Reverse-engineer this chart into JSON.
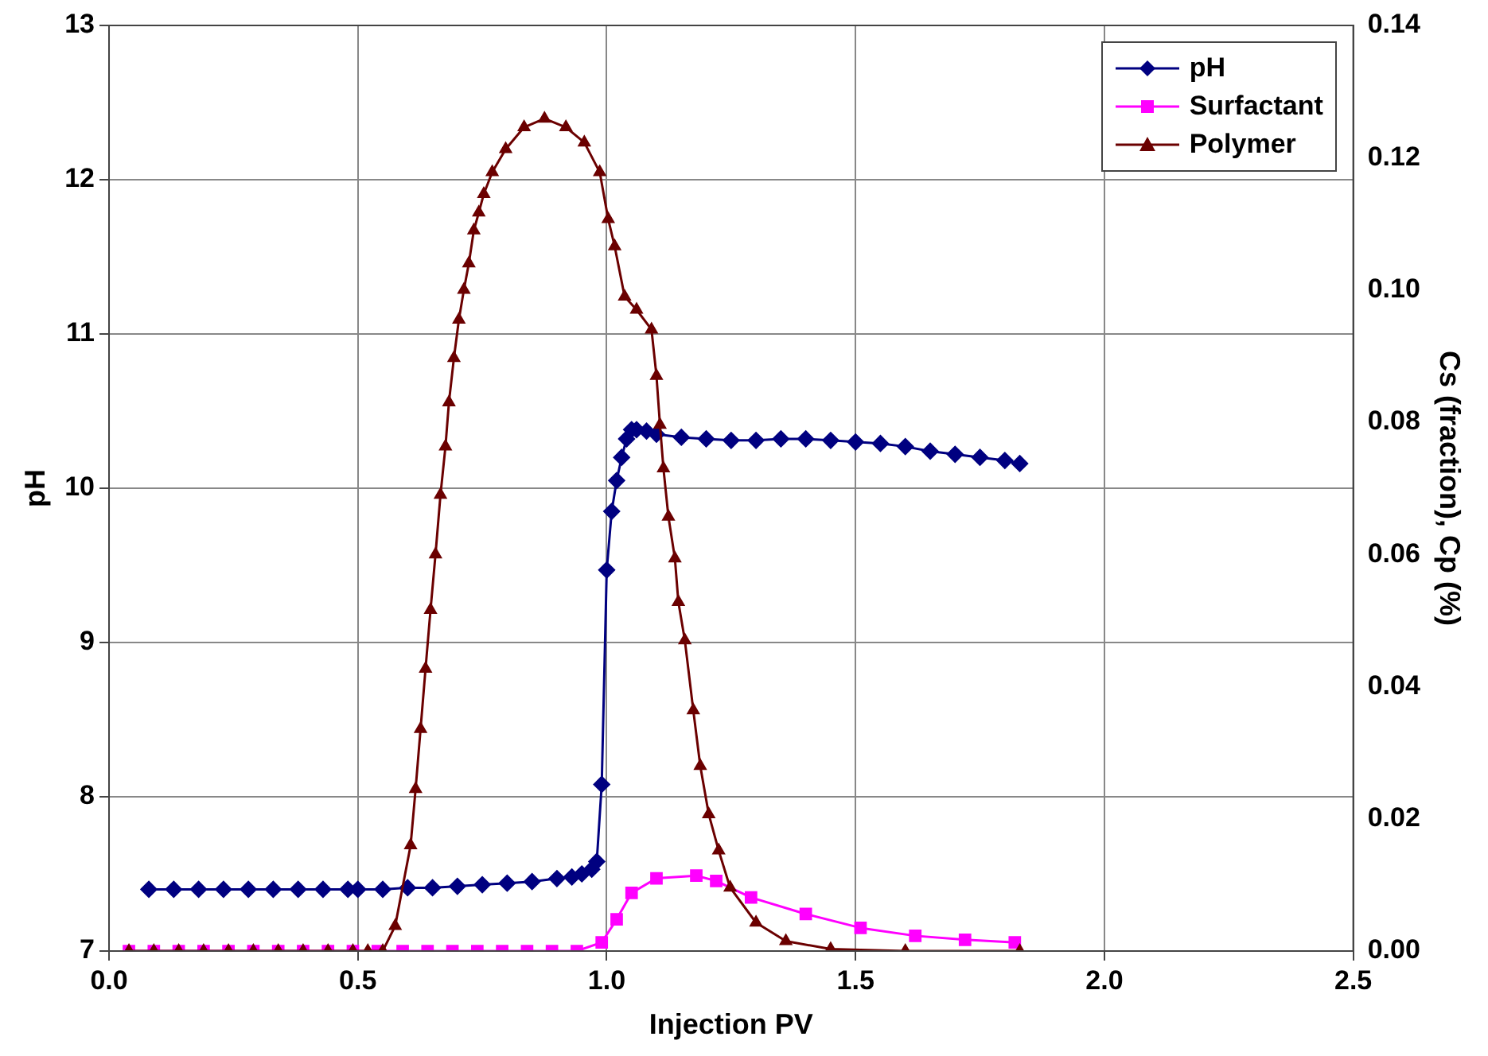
{
  "chart_data": {
    "type": "line",
    "xlabel": "Injection PV",
    "ylabel": "pH",
    "y2label": "Cs (fraction), Cp (%)",
    "xlim": [
      0,
      2.5
    ],
    "xticks": [
      {
        "value": 0,
        "label": "0.0"
      },
      {
        "value": 0.5,
        "label": "0.5"
      },
      {
        "value": 1,
        "label": "1.0"
      },
      {
        "value": 1.5,
        "label": "1.5"
      },
      {
        "value": 2,
        "label": "2.0"
      },
      {
        "value": 2.5,
        "label": "2.5"
      }
    ],
    "ylim": [
      7,
      13
    ],
    "yticks": [
      7,
      8,
      9,
      10,
      11,
      12,
      13
    ],
    "y2lim": [
      0,
      0.14
    ],
    "y2ticks": [
      {
        "value": 0,
        "label": "0.00"
      },
      {
        "value": 0.02,
        "label": "0.02"
      },
      {
        "value": 0.04,
        "label": "0.04"
      },
      {
        "value": 0.06,
        "label": "0.06"
      },
      {
        "value": 0.08,
        "label": "0.08"
      },
      {
        "value": 0.1,
        "label": "0.10"
      },
      {
        "value": 0.12,
        "label": "0.12"
      },
      {
        "value": 0.14,
        "label": "0.14"
      }
    ],
    "grid": true,
    "legend": "top right",
    "line_style": "solid",
    "series": [
      {
        "name": "pH",
        "color": "#000080",
        "marker": "diamond",
        "x": [
          0.08,
          0.13,
          0.18,
          0.23,
          0.28,
          0.33,
          0.38,
          0.43,
          0.48,
          0.5,
          0.55,
          0.6,
          0.65,
          0.7,
          0.75,
          0.8,
          0.85,
          0.9,
          0.93,
          0.95,
          0.97,
          0.98,
          0.99,
          1.0,
          1.01,
          1.02,
          1.03,
          1.04,
          1.05,
          1.06,
          1.08,
          1.1,
          1.15,
          1.2,
          1.25,
          1.3,
          1.35,
          1.4,
          1.45,
          1.5,
          1.55,
          1.6,
          1.65,
          1.7,
          1.75,
          1.8,
          1.83
        ],
        "values": [
          7.4,
          7.4,
          7.4,
          7.4,
          7.4,
          7.4,
          7.4,
          7.4,
          7.4,
          7.4,
          7.4,
          7.41,
          7.41,
          7.42,
          7.43,
          7.44,
          7.45,
          7.47,
          7.48,
          7.5,
          7.53,
          7.58,
          8.08,
          9.47,
          9.85,
          10.05,
          10.2,
          10.32,
          10.38,
          10.38,
          10.37,
          10.35,
          10.33,
          10.32,
          10.31,
          10.31,
          10.32,
          10.32,
          10.31,
          10.3,
          10.29,
          10.27,
          10.24,
          10.22,
          10.2,
          10.18,
          10.16
        ]
      },
      {
        "name": "Surfactant",
        "color": "#ff00ff",
        "marker": "square",
        "axis": "y2",
        "x": [
          0.04,
          0.09,
          0.14,
          0.19,
          0.24,
          0.29,
          0.34,
          0.39,
          0.44,
          0.49,
          0.54,
          0.59,
          0.64,
          0.69,
          0.74,
          0.79,
          0.84,
          0.89,
          0.94,
          0.99,
          1.02,
          1.05,
          1.1,
          1.18,
          1.22,
          1.29,
          1.4,
          1.51,
          1.62,
          1.72,
          1.82
        ],
        "values": [
          0,
          0,
          0,
          0,
          0,
          0,
          0,
          0,
          0,
          0,
          0,
          0,
          0,
          0,
          0,
          0,
          0,
          0,
          0,
          0.0013,
          0.0048,
          0.0088,
          0.011,
          0.0114,
          0.0106,
          0.0081,
          0.0056,
          0.0035,
          0.0023,
          0.0017,
          0.0013
        ]
      },
      {
        "name": "Polymer",
        "color": "#6b0000",
        "marker": "triangle",
        "axis": "y2",
        "x": [
          0.04,
          0.09,
          0.14,
          0.19,
          0.24,
          0.29,
          0.34,
          0.39,
          0.44,
          0.49,
          0.52,
          0.55,
          0.575,
          0.606,
          0.616,
          0.626,
          0.636,
          0.646,
          0.656,
          0.666,
          0.676,
          0.683,
          0.693,
          0.703,
          0.713,
          0.723,
          0.733,
          0.743,
          0.753,
          0.77,
          0.797,
          0.834,
          0.875,
          0.918,
          0.955,
          0.986,
          1.003,
          1.016,
          1.036,
          1.06,
          1.09,
          1.1,
          1.107,
          1.114,
          1.124,
          1.137,
          1.144,
          1.157,
          1.174,
          1.188,
          1.205,
          1.225,
          1.248,
          1.3,
          1.36,
          1.45,
          1.6,
          1.83
        ],
        "values": [
          0,
          0,
          0,
          0,
          0,
          0,
          0,
          0,
          0,
          0,
          0,
          0,
          0.0038,
          0.016,
          0.0245,
          0.0336,
          0.0427,
          0.0516,
          0.06,
          0.069,
          0.0763,
          0.083,
          0.0897,
          0.0955,
          0.1,
          0.104,
          0.109,
          0.1117,
          0.1145,
          0.1178,
          0.1213,
          0.1246,
          0.1259,
          0.1246,
          0.1223,
          0.1178,
          0.1107,
          0.1066,
          0.099,
          0.097,
          0.094,
          0.087,
          0.0796,
          0.073,
          0.0657,
          0.0594,
          0.0528,
          0.047,
          0.0364,
          0.028,
          0.0207,
          0.0152,
          0.0096,
          0.0043,
          0.0015,
          0.0003,
          0,
          0
        ]
      }
    ]
  }
}
